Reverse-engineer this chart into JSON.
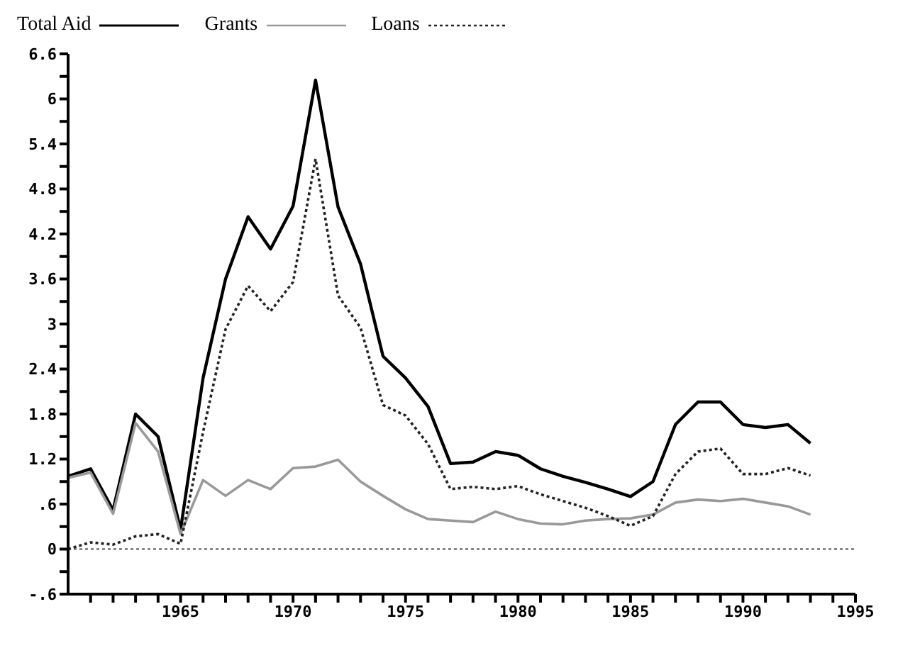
{
  "chart_data": {
    "type": "line",
    "x": [
      1960,
      1961,
      1962,
      1963,
      1964,
      1965,
      1966,
      1967,
      1968,
      1969,
      1970,
      1971,
      1972,
      1973,
      1974,
      1975,
      1976,
      1977,
      1978,
      1979,
      1980,
      1981,
      1982,
      1983,
      1984,
      1985,
      1986,
      1987,
      1988,
      1989,
      1990,
      1991,
      1992,
      1993
    ],
    "series": [
      {
        "name": "Total Aid",
        "color": "#000000",
        "line_style": "solid",
        "values": [
          0.97,
          1.07,
          0.52,
          1.8,
          1.5,
          0.26,
          2.28,
          3.6,
          4.43,
          4.0,
          4.57,
          6.25,
          4.56,
          3.8,
          2.57,
          2.28,
          1.9,
          1.14,
          1.16,
          1.3,
          1.25,
          1.07,
          0.97,
          0.89,
          0.8,
          0.7,
          0.9,
          1.66,
          1.96,
          1.96,
          1.66,
          1.62,
          1.66,
          1.41
        ]
      },
      {
        "name": "Grants",
        "color": "#999999",
        "line_style": "solid",
        "values": [
          0.95,
          1.02,
          0.47,
          1.68,
          1.3,
          0.2,
          0.92,
          0.71,
          0.92,
          0.8,
          1.08,
          1.1,
          1.19,
          0.9,
          0.71,
          0.53,
          0.4,
          0.38,
          0.36,
          0.5,
          0.4,
          0.34,
          0.33,
          0.38,
          0.4,
          0.41,
          0.46,
          0.62,
          0.66,
          0.64,
          0.67,
          0.62,
          0.57,
          0.46
        ]
      },
      {
        "name": "Loans",
        "color": "#222222",
        "line_style": "dotted",
        "values": [
          0.0,
          0.09,
          0.06,
          0.17,
          0.2,
          0.07,
          1.56,
          2.93,
          3.51,
          3.17,
          3.56,
          5.2,
          3.38,
          2.95,
          1.92,
          1.78,
          1.4,
          0.8,
          0.83,
          0.8,
          0.84,
          0.73,
          0.64,
          0.55,
          0.44,
          0.31,
          0.44,
          1.0,
          1.3,
          1.34,
          1.0,
          1.0,
          1.08,
          0.98
        ]
      }
    ],
    "xlim": [
      1960,
      1995
    ],
    "xticks": [
      {
        "value": 1961,
        "label": null
      },
      {
        "value": 1962,
        "label": null
      },
      {
        "value": 1963,
        "label": null
      },
      {
        "value": 1964,
        "label": null
      },
      1965,
      {
        "value": 1966,
        "label": null
      },
      {
        "value": 1967,
        "label": null
      },
      {
        "value": 1968,
        "label": null
      },
      {
        "value": 1969,
        "label": null
      },
      1970,
      {
        "value": 1971,
        "label": null
      },
      {
        "value": 1972,
        "label": null
      },
      {
        "value": 1973,
        "label": null
      },
      {
        "value": 1974,
        "label": null
      },
      1975,
      {
        "value": 1976,
        "label": null
      },
      {
        "value": 1977,
        "label": null
      },
      {
        "value": 1978,
        "label": null
      },
      {
        "value": 1979,
        "label": null
      },
      1980,
      {
        "value": 1981,
        "label": null
      },
      {
        "value": 1982,
        "label": null
      },
      {
        "value": 1983,
        "label": null
      },
      {
        "value": 1984,
        "label": null
      },
      1985,
      {
        "value": 1986,
        "label": null
      },
      {
        "value": 1987,
        "label": null
      },
      {
        "value": 1988,
        "label": null
      },
      {
        "value": 1989,
        "label": null
      },
      1990,
      {
        "value": 1991,
        "label": null
      },
      {
        "value": 1992,
        "label": null
      },
      {
        "value": 1993,
        "label": null
      },
      {
        "value": 1994,
        "label": null
      },
      1995
    ],
    "ylim": [
      -0.6,
      6.6
    ],
    "yticks": [
      {
        "value": -0.6,
        "label": "-.6"
      },
      {
        "value": -0.3,
        "label": null
      },
      0,
      {
        "value": 0.3,
        "label": null
      },
      {
        "value": 0.6,
        "label": ".6"
      },
      {
        "value": 0.9,
        "label": null
      },
      {
        "value": 1.2,
        "label": "1.2"
      },
      {
        "value": 1.5,
        "label": null
      },
      {
        "value": 1.8,
        "label": "1.8"
      },
      {
        "value": 2.1,
        "label": null
      },
      {
        "value": 2.4,
        "label": "2.4"
      },
      {
        "value": 2.7,
        "label": null
      },
      {
        "value": 3,
        "label": "3"
      },
      {
        "value": 3.3,
        "label": null
      },
      {
        "value": 3.6,
        "label": "3.6"
      },
      {
        "value": 3.9,
        "label": null
      },
      {
        "value": 4.2,
        "label": "4.2"
      },
      {
        "value": 4.5,
        "label": null
      },
      {
        "value": 4.8,
        "label": "4.8"
      },
      {
        "value": 5.1,
        "label": null
      },
      {
        "value": 5.4,
        "label": "5.4"
      },
      {
        "value": 5.7,
        "label": null
      },
      {
        "value": 6,
        "label": "6"
      },
      {
        "value": 6.3,
        "label": null
      },
      {
        "value": 6.6,
        "label": "6.6"
      }
    ],
    "ref_lines": [
      {
        "axis": "y",
        "value": 0,
        "color": "#888888",
        "line_style": "dotted"
      }
    ],
    "grid": false,
    "legend": "top left",
    "marker": "none"
  }
}
